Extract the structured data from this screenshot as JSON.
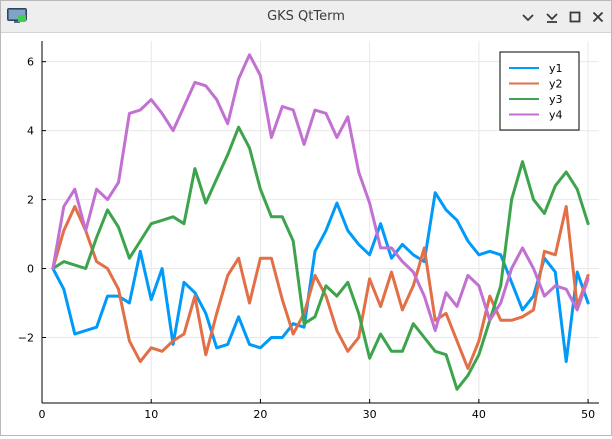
{
  "window": {
    "title": "GKS QtTerm",
    "controls": [
      "minimize-icon",
      "chevron-down-icon",
      "maximize-icon",
      "close-icon"
    ]
  },
  "chart_data": {
    "type": "line",
    "title": "",
    "xlabel": "",
    "ylabel": "",
    "xlim": [
      0,
      51
    ],
    "ylim": [
      -3.9,
      6.6
    ],
    "xticks": [
      0,
      10,
      20,
      30,
      40,
      50
    ],
    "yticks": [
      -2,
      0,
      2,
      4,
      6
    ],
    "ytick_labels": [
      "−2",
      "0",
      "2",
      "4",
      "6"
    ],
    "grid": true,
    "legend": "top-right",
    "x": [
      1,
      2,
      3,
      4,
      5,
      6,
      7,
      8,
      9,
      10,
      11,
      12,
      13,
      14,
      15,
      16,
      17,
      18,
      19,
      20,
      21,
      22,
      23,
      24,
      25,
      26,
      27,
      28,
      29,
      30,
      31,
      32,
      33,
      34,
      35,
      36,
      37,
      38,
      39,
      40,
      41,
      42,
      43,
      44,
      45,
      46,
      47,
      48,
      49,
      50
    ],
    "series": [
      {
        "name": "y1",
        "color": "#009af9",
        "values": [
          0,
          -0.6,
          -1.9,
          -1.8,
          -1.7,
          -0.8,
          -0.8,
          -1.0,
          0.5,
          -0.9,
          0,
          -2.2,
          -0.4,
          -0.7,
          -1.3,
          -2.3,
          -2.2,
          -1.4,
          -2.2,
          -2.3,
          -2.0,
          -2.0,
          -1.6,
          -1.7,
          0.5,
          1.1,
          1.9,
          1.1,
          0.7,
          0.4,
          1.3,
          0.3,
          0.7,
          0.4,
          0.2,
          2.2,
          1.7,
          1.4,
          0.8,
          0.4,
          0.5,
          0.4,
          -0.4,
          -1.2,
          -0.8,
          0.3,
          -0.1,
          -2.7,
          -0.1,
          -1.0
        ]
      },
      {
        "name": "y2",
        "color": "#e26f46",
        "values": [
          0,
          1.1,
          1.8,
          1.1,
          0.2,
          0,
          -0.6,
          -2.1,
          -2.7,
          -2.3,
          -2.4,
          -2.1,
          -1.9,
          -0.8,
          -2.5,
          -1.3,
          -0.2,
          0.3,
          -1.0,
          0.3,
          0.3,
          -0.9,
          -1.9,
          -1.3,
          -0.2,
          -0.8,
          -1.8,
          -2.4,
          -2.0,
          -0.3,
          -1.1,
          -0.1,
          -1.2,
          -0.5,
          0.6,
          -1.5,
          -1.3,
          -2.1,
          -2.9,
          -2.1,
          -0.8,
          -1.5,
          -1.5,
          -1.4,
          -1.2,
          0.5,
          0.4,
          1.8,
          -1.1,
          -0.2
        ]
      },
      {
        "name": "y3",
        "color": "#3da44d",
        "values": [
          0,
          0.2,
          0.1,
          0,
          0.9,
          1.7,
          1.2,
          0.3,
          0.8,
          1.3,
          1.4,
          1.5,
          1.3,
          2.9,
          1.9,
          2.6,
          3.3,
          4.1,
          3.5,
          2.3,
          1.5,
          1.5,
          0.8,
          -1.6,
          -1.4,
          -0.5,
          -0.8,
          -0.4,
          -1.3,
          -2.6,
          -1.9,
          -2.4,
          -2.4,
          -1.6,
          -2.0,
          -2.4,
          -2.5,
          -3.5,
          -3.1,
          -2.5,
          -1.5,
          -0.5,
          2.0,
          3.1,
          2.0,
          1.6,
          2.4,
          2.8,
          2.3,
          1.3
        ]
      },
      {
        "name": "y4",
        "color": "#c271d2",
        "values": [
          0,
          1.8,
          2.3,
          1.1,
          2.3,
          2.0,
          2.5,
          4.5,
          4.6,
          4.9,
          4.5,
          4.0,
          4.7,
          5.4,
          5.3,
          4.9,
          4.2,
          5.5,
          6.2,
          5.6,
          3.8,
          4.7,
          4.6,
          3.6,
          4.6,
          4.5,
          3.8,
          4.4,
          2.8,
          1.9,
          0.6,
          0.6,
          0.2,
          -0.1,
          -0.8,
          -1.8,
          -0.7,
          -1.1,
          -0.2,
          -0.5,
          -1.5,
          -1.0,
          0,
          0.6,
          0,
          -0.8,
          -0.5,
          -0.6,
          -1.2,
          -0.3
        ]
      }
    ]
  }
}
